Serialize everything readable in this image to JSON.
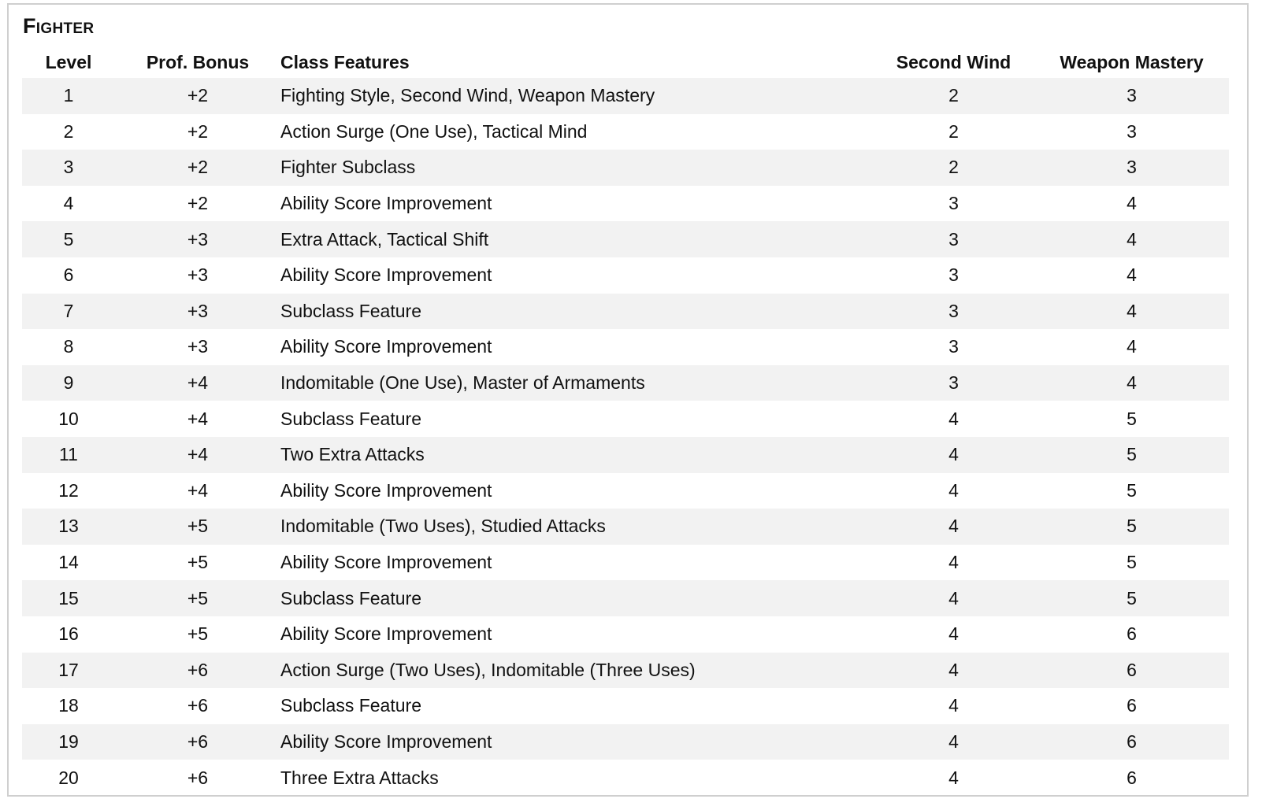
{
  "title": "Fighter",
  "columns": [
    "Level",
    "Prof. Bonus",
    "Class Features",
    "Second Wind",
    "Weapon Mastery"
  ],
  "rows": [
    [
      "1",
      "+2",
      "Fighting Style, Second Wind, Weapon Mastery",
      "2",
      "3"
    ],
    [
      "2",
      "+2",
      "Action Surge (One Use), Tactical Mind",
      "2",
      "3"
    ],
    [
      "3",
      "+2",
      "Fighter Subclass",
      "2",
      "3"
    ],
    [
      "4",
      "+2",
      "Ability Score Improvement",
      "3",
      "4"
    ],
    [
      "5",
      "+3",
      "Extra Attack, Tactical Shift",
      "3",
      "4"
    ],
    [
      "6",
      "+3",
      "Ability Score Improvement",
      "3",
      "4"
    ],
    [
      "7",
      "+3",
      "Subclass Feature",
      "3",
      "4"
    ],
    [
      "8",
      "+3",
      "Ability Score Improvement",
      "3",
      "4"
    ],
    [
      "9",
      "+4",
      "Indomitable (One Use), Master of Armaments",
      "3",
      "4"
    ],
    [
      "10",
      "+4",
      "Subclass Feature",
      "4",
      "5"
    ],
    [
      "11",
      "+4",
      "Two Extra Attacks",
      "4",
      "5"
    ],
    [
      "12",
      "+4",
      "Ability Score Improvement",
      "4",
      "5"
    ],
    [
      "13",
      "+5",
      "Indomitable (Two Uses), Studied Attacks",
      "4",
      "5"
    ],
    [
      "14",
      "+5",
      "Ability Score Improvement",
      "4",
      "5"
    ],
    [
      "15",
      "+5",
      "Subclass Feature",
      "4",
      "5"
    ],
    [
      "16",
      "+5",
      "Ability Score Improvement",
      "4",
      "6"
    ],
    [
      "17",
      "+6",
      "Action Surge (Two Uses), Indomitable (Three Uses)",
      "4",
      "6"
    ],
    [
      "18",
      "+6",
      "Subclass Feature",
      "4",
      "6"
    ],
    [
      "19",
      "+6",
      "Ability Score Improvement",
      "4",
      "6"
    ],
    [
      "20",
      "+6",
      "Three Extra Attacks",
      "4",
      "6"
    ]
  ],
  "colors": {
    "stripe": "#f2f2f2",
    "border": "#cfcfcf"
  }
}
